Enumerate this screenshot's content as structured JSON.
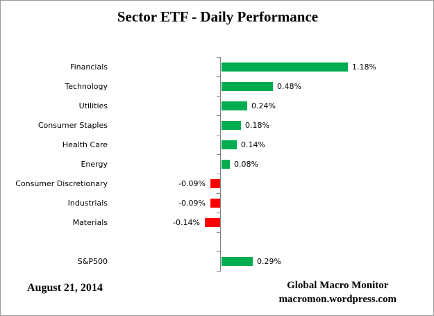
{
  "chart_data": {
    "type": "bar",
    "orientation": "horizontal",
    "title": "Sector ETF - Daily Performance",
    "categories": [
      "Financials",
      "Technology",
      "Utilities",
      "Consumer Staples",
      "Health Care",
      "Energy",
      "Consumer Discretionary",
      "Industrials",
      "Materials",
      "",
      "S&P500"
    ],
    "values": [
      1.18,
      0.48,
      0.24,
      0.18,
      0.14,
      0.08,
      -0.09,
      -0.09,
      -0.14,
      null,
      0.29
    ],
    "value_labels": [
      "1.18%",
      "0.48%",
      "0.24%",
      "0.18%",
      "0.14%",
      "0.08%",
      "-0.09%",
      "-0.09%",
      "-0.14%",
      null,
      "0.29%"
    ],
    "xlabel": "",
    "ylabel": "",
    "legend": false,
    "grid": false,
    "positive_color": "#00AC50",
    "negative_color": "#FF0000",
    "axis_color": "#808080",
    "text_color": "#000000"
  },
  "footer": {
    "date": "August 21, 2014",
    "source_line1": "Global Macro Monitor",
    "source_line2": "macromon.wordpress.com"
  }
}
